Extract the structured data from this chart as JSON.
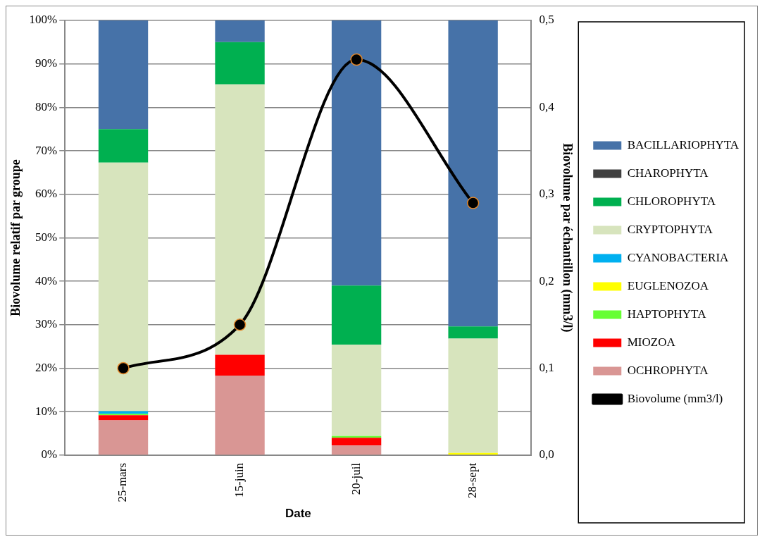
{
  "chart_data": {
    "type": "bar",
    "stacked": true,
    "xlabel": "Date",
    "ylabel": "Biovolume relatif par groupe",
    "y2label": "Biovolume par échantillon (mm3/l)",
    "categories": [
      "25-mars",
      "15-juin",
      "20-juil",
      "28-sept"
    ],
    "series": [
      {
        "name": "OCHROPHYTA",
        "color": "#d99694",
        "values": [
          8,
          18.3,
          2.2,
          0
        ]
      },
      {
        "name": "MIOZOA",
        "color": "#ff0000",
        "values": [
          1.2,
          4.8,
          1.8,
          0
        ]
      },
      {
        "name": "HAPTOPHYTA",
        "color": "#66ff33",
        "values": [
          0.3,
          0,
          0.4,
          0
        ]
      },
      {
        "name": "EUGLENOZOA",
        "color": "#ffff00",
        "values": [
          0,
          0,
          0,
          0.5
        ]
      },
      {
        "name": "CYANOBACTERIA",
        "color": "#00b0f0",
        "values": [
          0.6,
          0,
          0,
          0
        ]
      },
      {
        "name": "CRYPTOPHYTA",
        "color": "#d7e4bd",
        "values": [
          57.2,
          62.2,
          21,
          26.3
        ]
      },
      {
        "name": "CHLOROPHYTA",
        "color": "#00b050",
        "values": [
          7.7,
          9.7,
          13.6,
          2.8
        ]
      },
      {
        "name": "CHAROPHYTA",
        "color": "#404040",
        "values": [
          0,
          0,
          0,
          0
        ]
      },
      {
        "name": "BACILLARIOPHYTA",
        "color": "#4672a8",
        "values": [
          25,
          5,
          61,
          70.4
        ]
      },
      {
        "name": "Biovolume (mm3/l)",
        "type": "line",
        "axis": "y2",
        "color": "#000000",
        "values": [
          0.1,
          0.15,
          0.455,
          0.29
        ]
      }
    ],
    "ylim": [
      0,
      100
    ],
    "yticks": [
      {
        "value": 0,
        "label": "0%"
      },
      {
        "value": 10,
        "label": "10%"
      },
      {
        "value": 20,
        "label": "20%"
      },
      {
        "value": 30,
        "label": "30%"
      },
      {
        "value": 40,
        "label": "40%"
      },
      {
        "value": 50,
        "label": "50%"
      },
      {
        "value": 60,
        "label": "60%"
      },
      {
        "value": 70,
        "label": "70%"
      },
      {
        "value": 80,
        "label": "80%"
      },
      {
        "value": 90,
        "label": "90%"
      },
      {
        "value": 100,
        "label": "100%"
      }
    ],
    "y2lim": [
      0,
      0.5
    ],
    "y2ticks": [
      {
        "value": 0,
        "label": "0,0"
      },
      {
        "value": 0.1,
        "label": "0,1"
      },
      {
        "value": 0.2,
        "label": "0,2"
      },
      {
        "value": 0.3,
        "label": "0,3"
      },
      {
        "value": 0.4,
        "label": "0,4"
      },
      {
        "value": 0.5,
        "label": "0,5"
      }
    ],
    "grid": "y",
    "legend": "right",
    "marker": "circle",
    "line_style": "solid"
  }
}
